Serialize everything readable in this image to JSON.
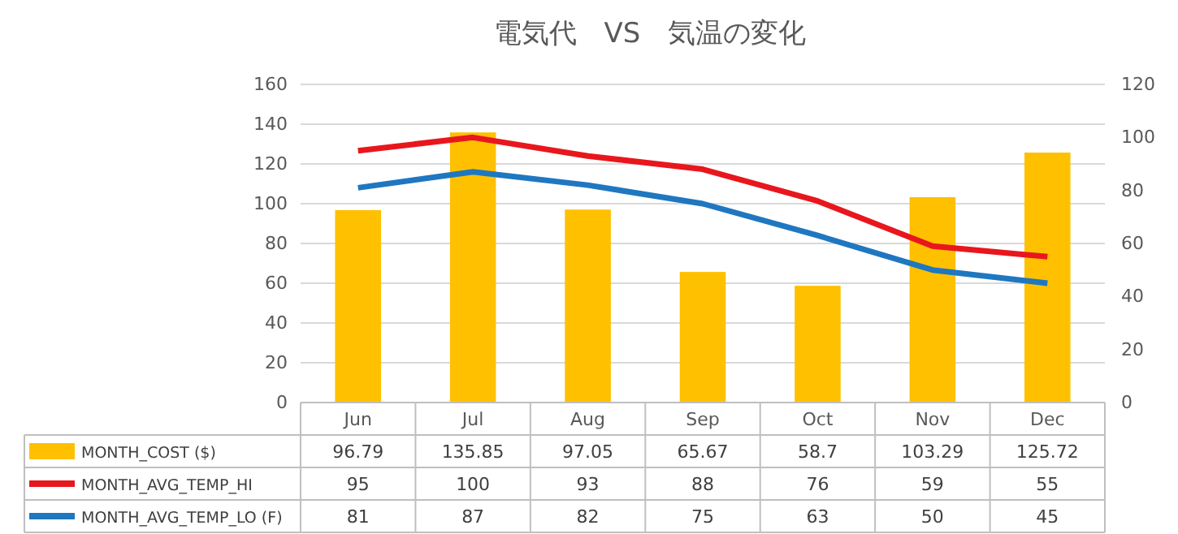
{
  "chart_data": {
    "type": "bar",
    "title": "電気代　VS　気温の変化",
    "categories": [
      "Jun",
      "Jul",
      "Aug",
      "Sep",
      "Oct",
      "Nov",
      "Dec"
    ],
    "series": [
      {
        "name": "MONTH_COST ($)",
        "color": "#ffc000",
        "values": [
          96.79,
          135.85,
          97.05,
          65.67,
          58.7,
          103.29,
          125.72
        ]
      },
      {
        "name": "MONTH_AVG_TEMP_HI",
        "type": "line",
        "axis": "y2",
        "color": "#e8171d",
        "values": [
          95,
          100,
          93,
          88,
          76,
          59,
          55
        ]
      },
      {
        "name": "MONTH_AVG_TEMP_LO (F)",
        "type": "line",
        "axis": "y2",
        "color": "#1f77c0",
        "values": [
          81,
          87,
          82,
          75,
          63,
          50,
          45
        ]
      }
    ],
    "ylim": [
      0,
      160
    ],
    "yticks": [
      0,
      20,
      40,
      60,
      80,
      100,
      120,
      140,
      160
    ],
    "y2lim": [
      0,
      120
    ],
    "y2ticks": [
      0,
      20,
      40,
      60,
      80,
      100,
      120
    ],
    "grid": "y",
    "legend": "bottom",
    "data_labels": true,
    "marker": "none",
    "line_style": "solid"
  }
}
